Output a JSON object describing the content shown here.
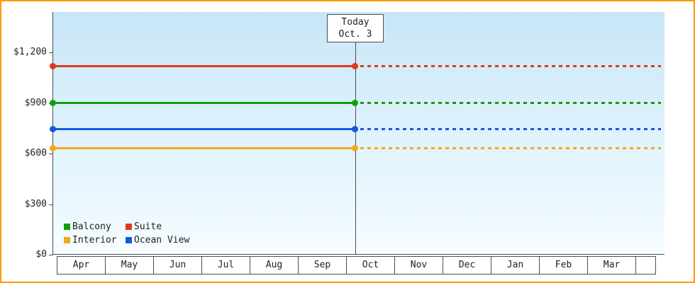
{
  "chart_data": {
    "type": "line",
    "title": "",
    "description": "Cabin price history/forecast by month; flat price lines, solid before today and dashed (projected) after today",
    "x_months": [
      "Apr",
      "May",
      "Jun",
      "Jul",
      "Aug",
      "Sep",
      "Oct",
      "Nov",
      "Dec",
      "Jan",
      "Feb",
      "Mar"
    ],
    "ylim": [
      0,
      1200
    ],
    "y_ticks": [
      {
        "value": 0,
        "label": "$0"
      },
      {
        "value": 300,
        "label": "$300"
      },
      {
        "value": 600,
        "label": "$600"
      },
      {
        "value": 900,
        "label": "$900"
      },
      {
        "value": 1200,
        "label": "$1,200"
      }
    ],
    "series": [
      {
        "name": "Suite",
        "value": 1120,
        "color": "#e0391d"
      },
      {
        "name": "Balcony",
        "value": 900,
        "color": "#10a010"
      },
      {
        "name": "Ocean View",
        "value": 745,
        "color": "#1457e6"
      },
      {
        "name": "Interior",
        "value": 630,
        "color": "#f5a81c"
      }
    ],
    "today": {
      "label_line1": "Today",
      "label_line2": "Oct. 3",
      "month_index": 6,
      "day_fraction": 0.097
    },
    "legend": [
      {
        "label": "Balcony"
      },
      {
        "label": "Suite"
      },
      {
        "label": "Interior"
      },
      {
        "label": "Ocean View"
      }
    ],
    "grid": "off",
    "legend_position": "bottom-left"
  }
}
